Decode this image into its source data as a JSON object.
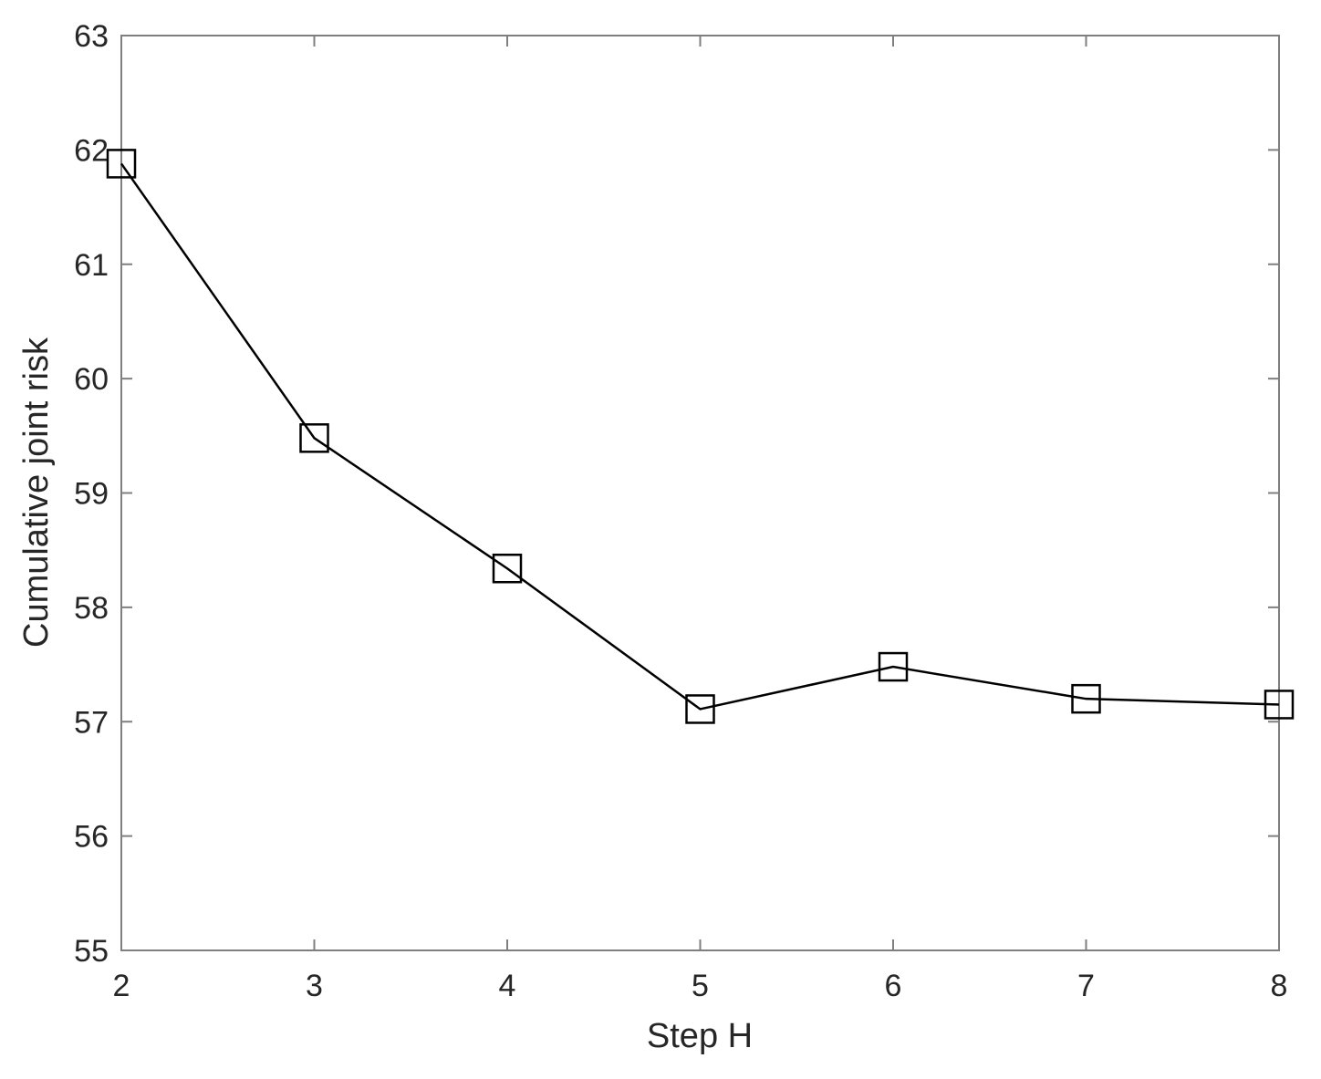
{
  "chart_data": {
    "type": "line",
    "title": "",
    "xlabel": "Step H",
    "ylabel": "Cumulative joint risk",
    "xlim": [
      2,
      8
    ],
    "ylim": [
      55,
      63
    ],
    "xticks": [
      2,
      3,
      4,
      5,
      6,
      7,
      8
    ],
    "yticks": [
      55,
      56,
      57,
      58,
      59,
      60,
      61,
      62,
      63
    ],
    "grid": false,
    "legend": "none",
    "marker": "square",
    "line_color": "#000000",
    "axis_color": "#7f7f7f",
    "series": [
      {
        "x": [
          2,
          3,
          4,
          5,
          6,
          7,
          8
        ],
        "values": [
          61.88,
          59.48,
          58.34,
          57.11,
          57.48,
          57.2,
          57.15
        ]
      }
    ]
  }
}
